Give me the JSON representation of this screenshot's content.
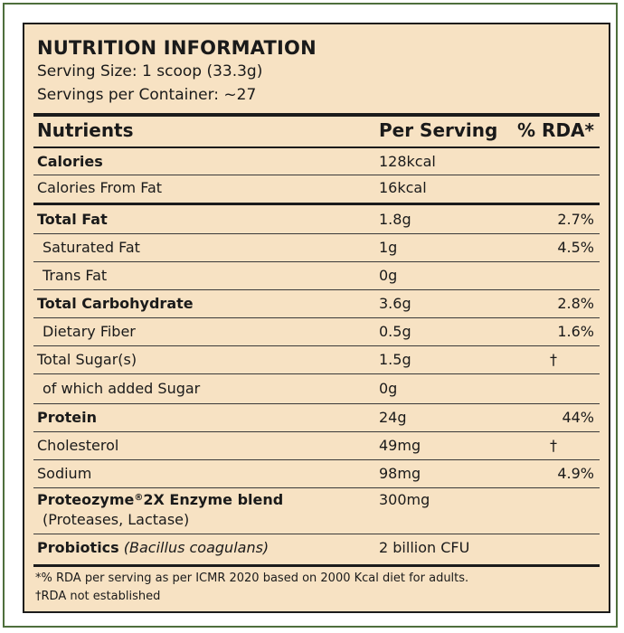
{
  "header": {
    "title": "NUTRITION INFORMATION",
    "serving_size": "Serving Size: 1 scoop (33.3g)",
    "servings_per_container": "Servings per Container: ~27"
  },
  "columns": {
    "nutrients": "Nutrients",
    "per_serving": "Per Serving",
    "rda": "% RDA*"
  },
  "rows": [
    {
      "name": "Calories",
      "per": "128kcal",
      "rda": ""
    },
    {
      "name": "Calories From Fat",
      "per": "16kcal",
      "rda": ""
    },
    {
      "name": "Total Fat",
      "per": "1.8g",
      "rda": "2.7%"
    },
    {
      "name": "Saturated Fat",
      "per": "1g",
      "rda": "4.5%"
    },
    {
      "name": "Trans Fat",
      "per": "0g",
      "rda": ""
    },
    {
      "name": "Total Carbohydrate",
      "per": "3.6g",
      "rda": "2.8%"
    },
    {
      "name": "Dietary Fiber",
      "per": "0.5g",
      "rda": "1.6%"
    },
    {
      "name": "Total Sugar(s)",
      "per": "1.5g",
      "rda": "†"
    },
    {
      "name": "of which added Sugar",
      "per": "0g",
      "rda": ""
    },
    {
      "name": "Protein",
      "per": "24g",
      "rda": "44%"
    },
    {
      "name": "Cholesterol",
      "per": "49mg",
      "rda": "†"
    },
    {
      "name": "Sodium",
      "per": "98mg",
      "rda": "4.9%"
    }
  ],
  "enzyme": {
    "name_prefix": "Proteozyme",
    "name_sup": "®",
    "name_suffix": "2X Enzyme blend",
    "sub": "(Proteases, Lactase)",
    "per": "300mg"
  },
  "probiotics": {
    "name": "Probiotics",
    "species": "(Bacillus coagulans)",
    "per": "2 billion CFU"
  },
  "footnotes": {
    "rda_note": "*% RDA per serving as per ICMR 2020 based on 2000 Kcal diet for adults.",
    "dagger_note": "†RDA not established"
  }
}
